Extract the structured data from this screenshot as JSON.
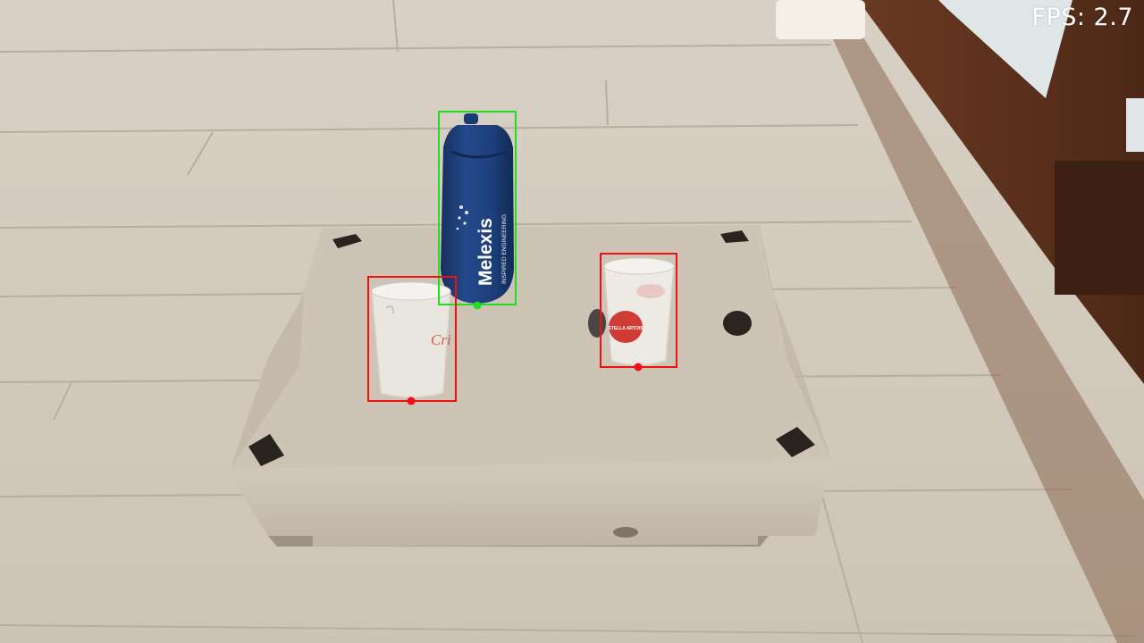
{
  "overlay": {
    "fps_text": "FPS: 2.7"
  },
  "bottle": {
    "brand_text": "Melexis",
    "tagline_text": "INSPIRED ENGINEERING"
  },
  "cup_left": {
    "logo_text": "Cri"
  },
  "cup_right": {
    "logo_text": "STELLA ARTOIS"
  },
  "detections": [
    {
      "class": "bottle",
      "color": "#22dd22"
    },
    {
      "class": "cup",
      "color": "#ee1111"
    },
    {
      "class": "cup",
      "color": "#ee1111"
    }
  ],
  "colors": {
    "floor": "#d3cabc",
    "box": "#c9bfb2",
    "bottle": "#1d3f7a",
    "detection_bottle": "#22dd22",
    "detection_cup": "#ee1111"
  }
}
